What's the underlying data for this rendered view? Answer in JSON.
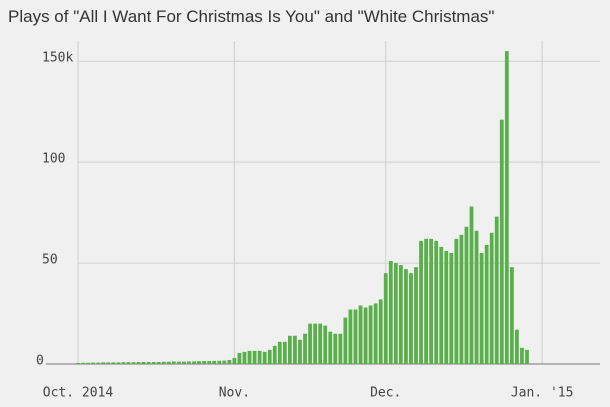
{
  "chart_data": {
    "type": "bar",
    "title": "Plays of \"All I Want For Christmas Is You\" and \"White Christmas\"",
    "categories": [
      "Oct. 2014",
      null,
      null,
      null,
      null,
      null,
      null,
      null,
      null,
      null,
      null,
      null,
      null,
      null,
      null,
      null,
      null,
      null,
      null,
      null,
      null,
      null,
      null,
      null,
      null,
      null,
      null,
      null,
      null,
      null,
      null,
      "Nov.",
      null,
      null,
      null,
      null,
      null,
      null,
      null,
      null,
      null,
      null,
      null,
      null,
      null,
      null,
      null,
      null,
      null,
      null,
      null,
      null,
      null,
      null,
      null,
      null,
      null,
      null,
      null,
      null,
      null,
      "Dec.",
      null,
      null,
      null,
      null,
      null,
      null,
      null,
      null,
      null,
      null,
      null,
      null,
      null,
      null,
      null,
      null,
      null,
      null,
      null,
      null,
      null,
      null,
      null,
      null,
      null,
      null,
      null,
      null,
      null,
      null,
      "Jan. '15"
    ],
    "values": [
      0.5,
      0.6,
      0.6,
      0.7,
      0.7,
      0.8,
      0.8,
      0.8,
      0.8,
      0.9,
      0.9,
      0.9,
      1,
      1,
      1,
      1,
      1,
      1.1,
      1.1,
      1.2,
      1.2,
      1.2,
      1.3,
      1.3,
      1.4,
      1.5,
      1.5,
      1.5,
      1.6,
      1.7,
      2,
      3,
      5.5,
      6,
      6.5,
      6.5,
      6.5,
      6,
      7,
      9,
      11,
      11,
      14,
      14,
      12,
      15,
      20,
      20,
      20,
      19,
      16,
      15,
      15,
      23,
      27,
      27,
      29,
      28,
      29,
      30,
      32,
      45,
      51,
      50,
      49,
      47,
      45,
      48,
      61,
      62,
      62,
      61,
      58,
      56,
      55,
      62,
      64,
      68,
      78,
      66,
      55,
      59,
      65,
      73,
      121,
      155,
      48,
      17,
      8,
      7,
      null,
      null,
      null
    ],
    "color": "#59b04b",
    "ylim": [
      0,
      160
    ],
    "yticks": [
      0,
      50,
      100,
      {
        "value": 150,
        "label": "150k"
      }
    ],
    "grid": true
  }
}
